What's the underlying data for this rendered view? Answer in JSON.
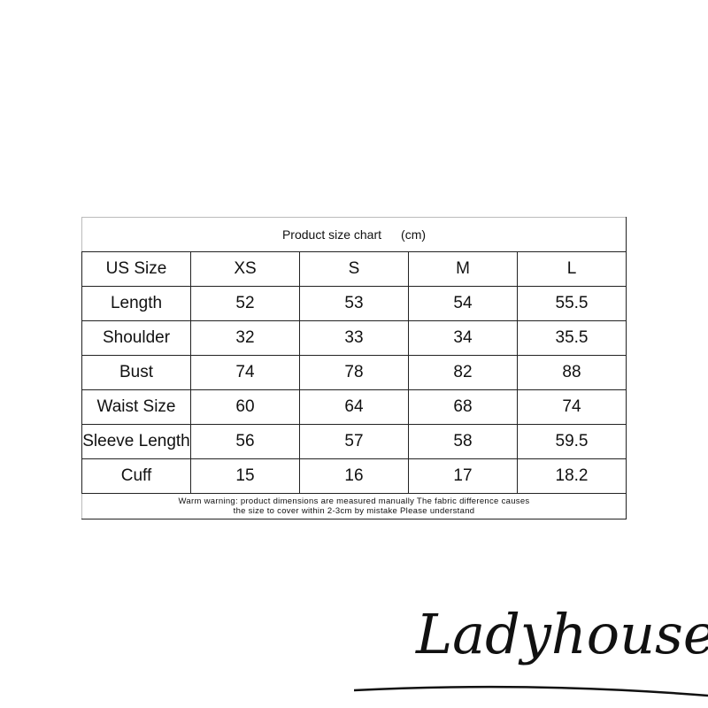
{
  "table": {
    "title": "Product size chart",
    "unit": "(cm)",
    "header": [
      "US Size",
      "XS",
      "S",
      "M",
      "L"
    ],
    "rows": [
      {
        "label": "Length",
        "values": [
          "52",
          "53",
          "54",
          "55.5"
        ]
      },
      {
        "label": "Shoulder",
        "values": [
          "32",
          "33",
          "34",
          "35.5"
        ]
      },
      {
        "label": "Bust",
        "values": [
          "74",
          "78",
          "82",
          "88"
        ]
      },
      {
        "label": "Waist Size",
        "values": [
          "60",
          "64",
          "68",
          "74"
        ]
      },
      {
        "label": "Sleeve Length",
        "values": [
          "56",
          "57",
          "58",
          "59.5"
        ]
      },
      {
        "label": "Cuff",
        "values": [
          "15",
          "16",
          "17",
          "18.2"
        ]
      }
    ],
    "note_line1": "Warm warning: product dimensions are measured manually The fabric difference causes",
    "note_line2": "the size to cover within 2-3cm by mistake Please understand"
  },
  "logo": {
    "text": "Ladyhouse"
  }
}
